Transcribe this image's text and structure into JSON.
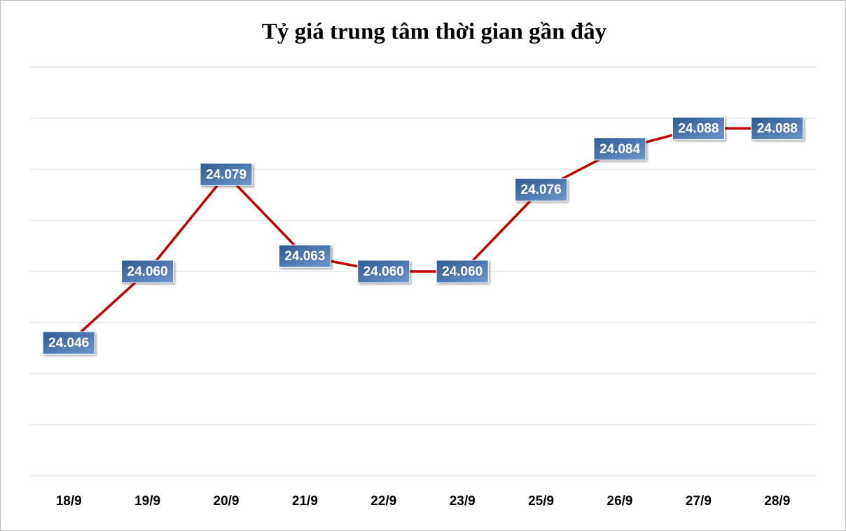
{
  "chart_data": {
    "type": "line",
    "title": "Tỷ giá trung tâm thời gian gần đây",
    "categories": [
      "18/9",
      "19/9",
      "20/9",
      "21/9",
      "22/9",
      "23/9",
      "25/9",
      "26/9",
      "27/9",
      "28/9"
    ],
    "values": [
      24.046,
      24.06,
      24.079,
      24.063,
      24.06,
      24.06,
      24.076,
      24.084,
      24.088,
      24.088
    ],
    "value_labels": [
      "24.046",
      "24.060",
      "24.079",
      "24.063",
      "24.060",
      "24.060",
      "24.076",
      "24.084",
      "24.088",
      "24.088"
    ],
    "color": "#c00000",
    "ylim": [
      24.02,
      24.1
    ],
    "yticks": [
      24.02,
      24.03,
      24.04,
      24.05,
      24.06,
      24.07,
      24.08,
      24.09,
      24.1
    ],
    "grid": true
  }
}
